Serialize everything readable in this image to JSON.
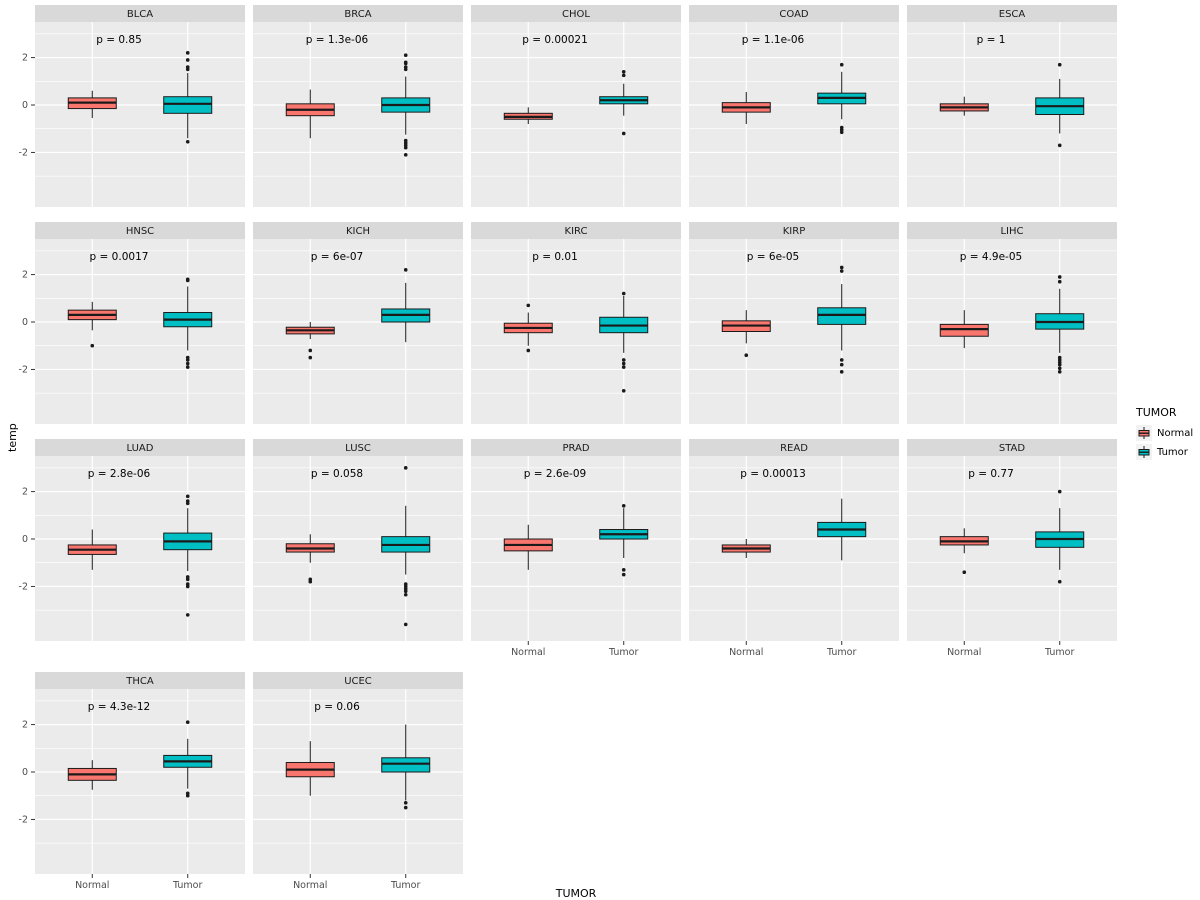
{
  "colors": {
    "normal": "#F8766D",
    "tumor": "#00BFC4",
    "panel_bg": "#EBEBEB",
    "strip_bg": "#D9D9D9",
    "grid": "#FFFFFF",
    "box_stroke": "#1A1A1A",
    "tick_text": "#4D4D4D"
  },
  "axis": {
    "y_label": "temp",
    "x_label": "TUMOR",
    "y_ticks": [
      2,
      0,
      -2
    ],
    "y_minor_ticks": [
      3,
      1,
      -1,
      -3
    ],
    "ylim": [
      -4.3,
      3.5
    ],
    "x_categories": [
      "Normal",
      "Tumor"
    ]
  },
  "legend": {
    "title": "TUMOR",
    "items": [
      {
        "label": "Normal",
        "color": "#F8766D"
      },
      {
        "label": "Tumor",
        "color": "#00BFC4"
      }
    ]
  },
  "chart_data": {
    "type": "boxplot",
    "facet_by": "cancer-type",
    "groups": [
      "Normal",
      "Tumor"
    ],
    "grid": "on",
    "legend_position": "right",
    "facets": [
      {
        "name": "BLCA",
        "p_label": "p = 0.85",
        "normal": {
          "lo": -0.55,
          "q1": -0.15,
          "med": 0.1,
          "q3": 0.3,
          "hi": 0.6,
          "outliers": []
        },
        "tumor": {
          "lo": -1.4,
          "q1": -0.35,
          "med": 0.05,
          "q3": 0.35,
          "hi": 1.35,
          "outliers": [
            2.2,
            1.9,
            1.6,
            1.5,
            -1.55
          ]
        }
      },
      {
        "name": "BRCA",
        "p_label": "p = 1.3e-06",
        "normal": {
          "lo": -1.4,
          "q1": -0.45,
          "med": -0.2,
          "q3": 0.05,
          "hi": 0.65,
          "outliers": []
        },
        "tumor": {
          "lo": -1.25,
          "q1": -0.3,
          "med": 0.0,
          "q3": 0.3,
          "hi": 1.2,
          "outliers": [
            2.1,
            1.8,
            1.75,
            1.6,
            1.5,
            -1.5,
            -1.6,
            -1.7,
            -1.8,
            -2.1
          ]
        }
      },
      {
        "name": "CHOL",
        "p_label": "p = 0.00021",
        "normal": {
          "lo": -0.8,
          "q1": -0.6,
          "med": -0.5,
          "q3": -0.35,
          "hi": -0.1,
          "outliers": []
        },
        "tumor": {
          "lo": -0.45,
          "q1": 0.05,
          "med": 0.2,
          "q3": 0.35,
          "hi": 0.9,
          "outliers": [
            1.4,
            1.25,
            -1.2
          ]
        }
      },
      {
        "name": "COAD",
        "p_label": "p = 1.1e-06",
        "normal": {
          "lo": -0.8,
          "q1": -0.3,
          "med": -0.1,
          "q3": 0.1,
          "hi": 0.55,
          "outliers": []
        },
        "tumor": {
          "lo": -0.6,
          "q1": 0.05,
          "med": 0.3,
          "q3": 0.5,
          "hi": 1.4,
          "outliers": [
            1.7,
            -0.95,
            -1.05,
            -1.15
          ]
        }
      },
      {
        "name": "ESCA",
        "p_label": "p = 1",
        "normal": {
          "lo": -0.45,
          "q1": -0.25,
          "med": -0.1,
          "q3": 0.05,
          "hi": 0.35,
          "outliers": []
        },
        "tumor": {
          "lo": -1.2,
          "q1": -0.4,
          "med": -0.05,
          "q3": 0.3,
          "hi": 1.1,
          "outliers": [
            1.7,
            -1.7
          ]
        }
      },
      {
        "name": "HNSC",
        "p_label": "p = 0.0017",
        "normal": {
          "lo": -0.35,
          "q1": 0.1,
          "med": 0.3,
          "q3": 0.5,
          "hi": 0.85,
          "outliers": [
            -1.0
          ]
        },
        "tumor": {
          "lo": -1.2,
          "q1": -0.2,
          "med": 0.1,
          "q3": 0.4,
          "hi": 1.5,
          "outliers": [
            1.8,
            1.75,
            -1.5,
            -1.6,
            -1.75,
            -1.9
          ]
        }
      },
      {
        "name": "KICH",
        "p_label": "p = 6e-07",
        "normal": {
          "lo": -0.72,
          "q1": -0.5,
          "med": -0.35,
          "q3": -0.22,
          "hi": 0.0,
          "outliers": [
            -1.2,
            -1.5
          ]
        },
        "tumor": {
          "lo": -0.85,
          "q1": 0.0,
          "med": 0.3,
          "q3": 0.55,
          "hi": 1.65,
          "outliers": [
            2.2
          ]
        }
      },
      {
        "name": "KIRC",
        "p_label": "p = 0.01",
        "normal": {
          "lo": -1.0,
          "q1": -0.45,
          "med": -0.25,
          "q3": -0.05,
          "hi": 0.4,
          "outliers": [
            0.7,
            -1.2
          ]
        },
        "tumor": {
          "lo": -1.3,
          "q1": -0.45,
          "med": -0.15,
          "q3": 0.2,
          "hi": 1.1,
          "outliers": [
            1.2,
            -1.6,
            -1.75,
            -1.9,
            -2.9
          ]
        }
      },
      {
        "name": "KIRP",
        "p_label": "p = 6e-05",
        "normal": {
          "lo": -0.9,
          "q1": -0.4,
          "med": -0.15,
          "q3": 0.05,
          "hi": 0.5,
          "outliers": [
            -1.4
          ]
        },
        "tumor": {
          "lo": -1.2,
          "q1": -0.1,
          "med": 0.3,
          "q3": 0.6,
          "hi": 1.6,
          "outliers": [
            2.3,
            2.15,
            -1.6,
            -1.8,
            -2.1
          ]
        }
      },
      {
        "name": "LIHC",
        "p_label": "p = 4.9e-05",
        "normal": {
          "lo": -1.1,
          "q1": -0.6,
          "med": -0.3,
          "q3": -0.1,
          "hi": 0.5,
          "outliers": []
        },
        "tumor": {
          "lo": -1.3,
          "q1": -0.3,
          "med": 0.0,
          "q3": 0.35,
          "hi": 1.4,
          "outliers": [
            1.9,
            1.7,
            -1.5,
            -1.6,
            -1.7,
            -1.8,
            -1.95,
            -2.1
          ]
        }
      },
      {
        "name": "LUAD",
        "p_label": "p = 2.8e-06",
        "normal": {
          "lo": -1.3,
          "q1": -0.65,
          "med": -0.45,
          "q3": -0.25,
          "hi": 0.4,
          "outliers": []
        },
        "tumor": {
          "lo": -1.35,
          "q1": -0.45,
          "med": -0.1,
          "q3": 0.25,
          "hi": 1.3,
          "outliers": [
            1.8,
            1.6,
            1.5,
            -1.6,
            -1.7,
            -1.9,
            -2.0,
            -3.2
          ]
        }
      },
      {
        "name": "LUSC",
        "p_label": "p = 0.058",
        "normal": {
          "lo": -1.0,
          "q1": -0.55,
          "med": -0.4,
          "q3": -0.2,
          "hi": 0.2,
          "outliers": [
            -1.7,
            -1.8
          ]
        },
        "tumor": {
          "lo": -1.5,
          "q1": -0.55,
          "med": -0.25,
          "q3": 0.1,
          "hi": 1.4,
          "outliers": [
            3.0,
            -1.9,
            -2.0,
            -2.1,
            -2.2,
            -2.35,
            -3.6
          ]
        }
      },
      {
        "name": "PRAD",
        "p_label": "p = 2.6e-09",
        "normal": {
          "lo": -1.3,
          "q1": -0.5,
          "med": -0.25,
          "q3": 0.0,
          "hi": 0.6,
          "outliers": []
        },
        "tumor": {
          "lo": -0.8,
          "q1": 0.0,
          "med": 0.2,
          "q3": 0.4,
          "hi": 1.3,
          "outliers": [
            1.4,
            -1.3,
            -1.5
          ]
        }
      },
      {
        "name": "READ",
        "p_label": "p = 0.00013",
        "normal": {
          "lo": -0.8,
          "q1": -0.55,
          "med": -0.4,
          "q3": -0.25,
          "hi": 0.0,
          "outliers": []
        },
        "tumor": {
          "lo": -0.9,
          "q1": 0.1,
          "med": 0.4,
          "q3": 0.7,
          "hi": 1.7,
          "outliers": []
        }
      },
      {
        "name": "STAD",
        "p_label": "p = 0.77",
        "normal": {
          "lo": -0.6,
          "q1": -0.25,
          "med": -0.1,
          "q3": 0.1,
          "hi": 0.45,
          "outliers": [
            -1.4
          ]
        },
        "tumor": {
          "lo": -1.3,
          "q1": -0.35,
          "med": 0.0,
          "q3": 0.3,
          "hi": 1.3,
          "outliers": [
            2.0,
            -1.8
          ]
        }
      },
      {
        "name": "THCA",
        "p_label": "p = 4.3e-12",
        "normal": {
          "lo": -0.75,
          "q1": -0.35,
          "med": -0.1,
          "q3": 0.15,
          "hi": 0.5,
          "outliers": []
        },
        "tumor": {
          "lo": -0.7,
          "q1": 0.2,
          "med": 0.45,
          "q3": 0.7,
          "hi": 1.4,
          "outliers": [
            2.1,
            -0.9,
            -1.0
          ]
        }
      },
      {
        "name": "UCEC",
        "p_label": "p = 0.06",
        "normal": {
          "lo": -1.0,
          "q1": -0.2,
          "med": 0.1,
          "q3": 0.4,
          "hi": 1.3,
          "outliers": []
        },
        "tumor": {
          "lo": -1.2,
          "q1": 0.0,
          "med": 0.35,
          "q3": 0.6,
          "hi": 2.0,
          "outliers": [
            -1.3,
            -1.5
          ]
        }
      }
    ]
  }
}
